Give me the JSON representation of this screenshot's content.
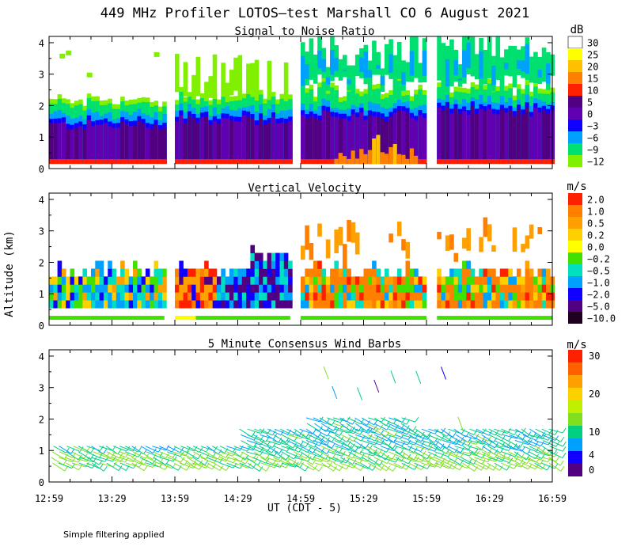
{
  "figure": {
    "title": "449 MHz Profiler LOTOS—test Marshall CO  6 August 2021",
    "xlabel": "UT  (CDT - 5)",
    "ylabel": "Altitude (km)",
    "footnote": "Simple filtering applied",
    "x_ticks": [
      "12:59",
      "13:29",
      "13:59",
      "14:29",
      "14:59",
      "15:29",
      "15:59",
      "16:29",
      "16:59"
    ],
    "y_ticks": [
      "0",
      "1",
      "2",
      "3",
      "4"
    ],
    "y_range_km": [
      0,
      4.2
    ],
    "x_range_minutes": [
      0,
      240
    ]
  },
  "chart_data": [
    {
      "type": "heatmap",
      "title": "Signal to Noise Ratio",
      "unit": "dB",
      "colorbar_labels": [
        "30",
        "25",
        "20",
        "15",
        "10",
        "5",
        "0",
        "−3",
        "−6",
        "−9",
        "−12"
      ],
      "colors": [
        "#ffffff",
        "#ffff00",
        "#ffc000",
        "#ff8000",
        "#ff2000",
        "#500080",
        "#6000b0",
        "#1000ff",
        "#00a0ff",
        "#00e070",
        "#80f000"
      ],
      "data_segments_minutes": [
        [
          0,
          55
        ],
        [
          60,
          115
        ],
        [
          120,
          180
        ],
        [
          185,
          240
        ]
      ],
      "layers": [
        {
          "name": "near-surface",
          "alt_top_km": 0.3,
          "color": "#ff2000"
        },
        {
          "name": "boundary-layer",
          "alt_top_km": 1.3,
          "color": "#500080"
        },
        {
          "name": "transition",
          "alt_top_km": 1.8,
          "color": "#1000ff"
        },
        {
          "name": "upper",
          "alt_top_km": 2.2,
          "color": "#00a0ff"
        }
      ]
    },
    {
      "type": "heatmap",
      "title": "Vertical Velocity",
      "unit": "m/s",
      "colorbar_labels": [
        "2.0",
        "1.0",
        "0.5",
        "0.2",
        "0.0",
        "−0.2",
        "−0.5",
        "−1.0",
        "−2.0",
        "−5.0",
        "−10.0"
      ],
      "colors": [
        "#ff2000",
        "#ff8000",
        "#ffa000",
        "#ffd000",
        "#ffff00",
        "#40e000",
        "#00e0c0",
        "#00a0ff",
        "#1000ff",
        "#500080",
        "#200020"
      ],
      "data_segments_minutes": [
        [
          0,
          55
        ],
        [
          60,
          115
        ],
        [
          120,
          180
        ],
        [
          185,
          240
        ]
      ],
      "boundary_layer_top_km": 1.8,
      "lowest_gate_km": 0.55
    },
    {
      "type": "scatter",
      "title": "5 Minute Consensus Wind Barbs",
      "unit": "m/s",
      "colorbar_labels": [
        "30",
        "20",
        "10",
        "4",
        "0"
      ],
      "colorbar_values": [
        30,
        20,
        10,
        4,
        0
      ],
      "colors": [
        "#ff2000",
        "#ff6000",
        "#ffa000",
        "#ffd000",
        "#c0f000",
        "#80e020",
        "#00d080",
        "#00a0ff",
        "#1000ff",
        "#500080"
      ],
      "typical_speed_ms": 9,
      "layer_range_km": [
        0.6,
        1.6
      ]
    }
  ]
}
